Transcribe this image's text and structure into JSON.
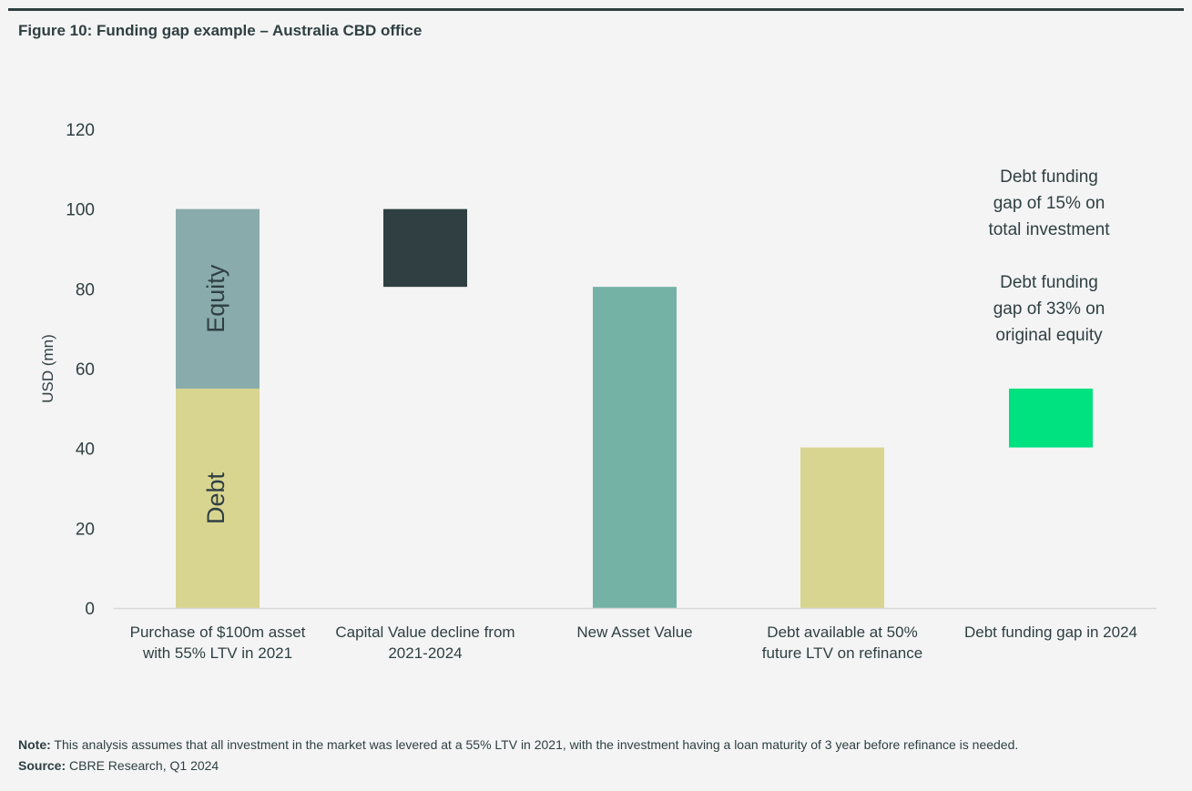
{
  "figure": {
    "title": "Figure 10: Funding gap example – Australia CBD office"
  },
  "footer": {
    "note_label": "Note:",
    "note_text": " This analysis assumes that all investment in the market was levered at a 55% LTV in 2021, with the investment having a loan maturity of 3 year before refinance is needed.",
    "source_label": "Source:",
    "source_text": " CBRE Research, Q1 2024"
  },
  "chart_data": {
    "type": "bar",
    "subtype": "waterfall",
    "title": "Figure 10: Funding gap example – Australia CBD office",
    "ylabel": "USD (mn)",
    "ylim": [
      0,
      120
    ],
    "yticks": [
      0,
      20,
      40,
      60,
      80,
      100,
      120
    ],
    "grid": false,
    "categories": [
      [
        "Purchase of $100m asset",
        "with 55% LTV in 2021"
      ],
      [
        "Capital Value decline from",
        "2021-2024"
      ],
      [
        "New Asset Value"
      ],
      [
        "Debt available at 50%",
        "future LTV on refinance"
      ],
      [
        "Debt funding gap in 2024"
      ]
    ],
    "bars": [
      {
        "category_index": 0,
        "segment": "Debt",
        "bottom": 0,
        "top": 55,
        "color": "#d8d590",
        "label": "Debt"
      },
      {
        "category_index": 0,
        "segment": "Equity",
        "bottom": 55,
        "top": 100,
        "color": "#8aabab",
        "label": "Equity"
      },
      {
        "category_index": 1,
        "segment": "Capital Value decline",
        "bottom": 80.5,
        "top": 100,
        "color": "#2f3f42",
        "label": ""
      },
      {
        "category_index": 2,
        "segment": "New Asset Value",
        "bottom": 0,
        "top": 80.5,
        "color": "#73b2a4",
        "label": ""
      },
      {
        "category_index": 3,
        "segment": "Debt available",
        "bottom": 0,
        "top": 40.25,
        "color": "#d8d590",
        "label": ""
      },
      {
        "category_index": 4,
        "segment": "Funding gap",
        "bottom": 40.25,
        "top": 55,
        "color": "#00e180",
        "label": ""
      }
    ],
    "annotations": [
      {
        "lines": [
          "Debt funding",
          "gap of 15% on",
          "total investment"
        ]
      },
      {
        "lines": [
          "Debt funding",
          "gap of 33% on",
          "original equity"
        ]
      }
    ]
  }
}
